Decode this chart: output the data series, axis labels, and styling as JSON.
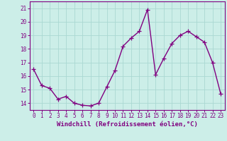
{
  "x": [
    0,
    1,
    2,
    3,
    4,
    5,
    6,
    7,
    8,
    9,
    10,
    11,
    12,
    13,
    14,
    15,
    16,
    17,
    18,
    19,
    20,
    21,
    22,
    23
  ],
  "y": [
    16.5,
    15.3,
    15.1,
    14.3,
    14.5,
    14.0,
    13.85,
    13.8,
    14.0,
    15.2,
    16.4,
    18.2,
    18.8,
    19.3,
    20.9,
    16.1,
    17.3,
    18.4,
    19.0,
    19.3,
    18.9,
    18.5,
    17.0,
    14.7
  ],
  "line_color": "#800080",
  "marker": "+",
  "marker_size": 4,
  "linewidth": 1.0,
  "bg_color": "#cceee8",
  "grid_color": "#aad8d2",
  "ylim": [
    13.5,
    21.5
  ],
  "xlim": [
    -0.5,
    23.5
  ],
  "yticks": [
    14,
    15,
    16,
    17,
    18,
    19,
    20,
    21
  ],
  "xticks": [
    0,
    1,
    2,
    3,
    4,
    5,
    6,
    7,
    8,
    9,
    10,
    11,
    12,
    13,
    14,
    15,
    16,
    17,
    18,
    19,
    20,
    21,
    22,
    23
  ],
  "xlabel": "Windchill (Refroidissement éolien,°C)",
  "tick_color": "#800080",
  "label_color": "#800080",
  "axis_color": "#800080",
  "xlabel_fontsize": 6.5,
  "tick_fontsize": 5.5
}
